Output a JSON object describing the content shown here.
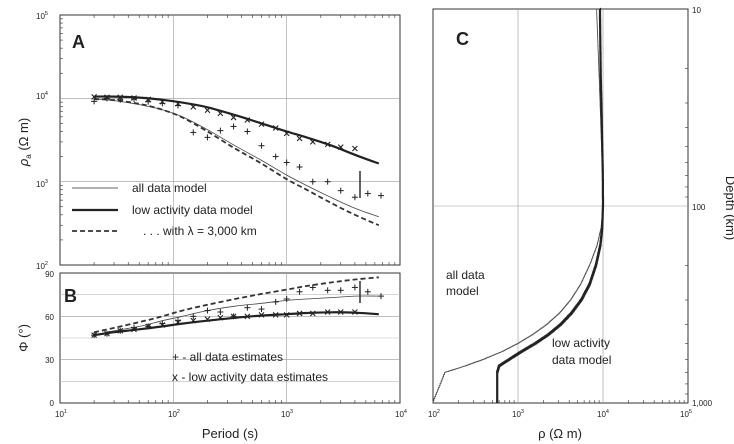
{
  "chart_data": [
    {
      "panel": "A",
      "type": "line",
      "ylabel": "ρa (Ω m)",
      "xscale": "log",
      "yscale": "log",
      "xlim": [
        10,
        10000
      ],
      "ylim": [
        100,
        100000
      ],
      "xticks": [
        "10^1",
        "10^2",
        "10^3",
        "10^4"
      ],
      "yticks": [
        "10^2",
        "10^3",
        "10^4",
        "10^5"
      ],
      "legend_placement": "bottom-left",
      "series": [
        {
          "name": "all data model",
          "style": "thin",
          "x": [
            20,
            30,
            50,
            80,
            120,
            200,
            350,
            600,
            1000,
            1500,
            2500,
            4000,
            6500
          ],
          "y": [
            9800,
            9400,
            8400,
            7300,
            6000,
            4200,
            2700,
            1800,
            1200,
            900,
            640,
            480,
            380
          ]
        },
        {
          "name": "low activity data model",
          "style": "thick",
          "x": [
            20,
            30,
            50,
            80,
            120,
            200,
            350,
            600,
            1000,
            1500,
            2500,
            4000,
            6500
          ],
          "y": [
            10500,
            10500,
            10200,
            9600,
            8900,
            7800,
            6300,
            5000,
            4000,
            3400,
            2700,
            2100,
            1650
          ]
        },
        {
          "name": ". . . with λ = 3,000 km",
          "style": "dashed",
          "x": [
            20,
            30,
            50,
            80,
            120,
            200,
            350,
            600,
            1000,
            1500,
            2500,
            4000,
            6500
          ],
          "y": [
            9800,
            9500,
            8600,
            7300,
            5900,
            4000,
            2500,
            1650,
            1070,
            800,
            550,
            400,
            300
          ]
        },
        {
          "name": "all data estimates",
          "marker": "plus",
          "x": [
            20,
            26,
            34,
            45,
            60,
            80,
            110,
            150,
            200,
            260,
            340,
            450,
            600,
            800,
            1000,
            1300,
            1700,
            2300,
            3000,
            4000,
            5200,
            6800
          ],
          "y": [
            9200,
            10000,
            9600,
            9800,
            9100,
            8700,
            8200,
            3900,
            3400,
            4100,
            4600,
            4000,
            2700,
            2000,
            1700,
            1500,
            1000,
            1000,
            780,
            650,
            720,
            680
          ]
        },
        {
          "name": "low activity data estimates",
          "marker": "x",
          "x": [
            20,
            26,
            34,
            45,
            60,
            80,
            110,
            150,
            200,
            260,
            340,
            450,
            600,
            800,
            1000,
            1300,
            1700,
            2300,
            3000,
            4000
          ],
          "y": [
            10400,
            10300,
            10300,
            10100,
            9700,
            9100,
            8600,
            7900,
            7200,
            6600,
            5900,
            5500,
            4900,
            4400,
            3800,
            3300,
            3000,
            2800,
            2600,
            2500
          ]
        }
      ],
      "annotations": [
        "A"
      ]
    },
    {
      "panel": "B",
      "type": "line",
      "xlabel": "Period (s)",
      "ylabel": "Φ (°)",
      "xscale": "log",
      "xlim": [
        10,
        10000
      ],
      "ylim": [
        0,
        90
      ],
      "xticks": [
        "10^1",
        "10^2",
        "10^3",
        "10^4"
      ],
      "yticks": [
        "0",
        "30",
        "60",
        "90"
      ],
      "series": [
        {
          "name": "all data model",
          "style": "thin",
          "x": [
            20,
            30,
            50,
            80,
            120,
            200,
            350,
            600,
            1000,
            1500,
            2500,
            4000,
            6500
          ],
          "y": [
            47,
            50,
            53,
            57,
            60,
            64,
            67,
            69,
            71,
            72,
            73,
            74,
            74
          ]
        },
        {
          "name": "low activity data model",
          "style": "thick",
          "x": [
            20,
            30,
            50,
            80,
            120,
            200,
            350,
            600,
            1000,
            1500,
            2500,
            4000,
            6500
          ],
          "y": [
            47,
            49,
            51,
            53,
            55,
            57,
            59,
            60.5,
            61.5,
            62.3,
            62.8,
            62.5,
            61.5
          ]
        },
        {
          "name": ". . . with λ = 3,000 km",
          "style": "dashed",
          "x": [
            20,
            30,
            50,
            80,
            120,
            200,
            350,
            600,
            1000,
            1500,
            2500,
            4000,
            6500
          ],
          "y": [
            49,
            52,
            56,
            60,
            64,
            68,
            72,
            75.5,
            78.5,
            81,
            83.5,
            85.5,
            87
          ]
        },
        {
          "name": "all data estimates",
          "marker": "plus",
          "x": [
            20,
            26,
            34,
            45,
            60,
            80,
            110,
            150,
            200,
            260,
            340,
            450,
            600,
            800,
            1000,
            1300,
            1700,
            2300,
            3000,
            4000,
            5200,
            6800
          ],
          "y": [
            47,
            48,
            50,
            52,
            53,
            55,
            57,
            60,
            64,
            63,
            60,
            66,
            65,
            70,
            72,
            77,
            80,
            78,
            78,
            80,
            77,
            74
          ]
        },
        {
          "name": "low activity data estimates",
          "marker": "x",
          "x": [
            20,
            26,
            34,
            45,
            60,
            80,
            110,
            150,
            200,
            260,
            340,
            450,
            600,
            800,
            1000,
            1300,
            1700,
            2300,
            3000,
            4000
          ],
          "y": [
            47,
            48,
            50,
            51,
            53,
            54,
            56,
            57,
            58,
            59,
            60,
            60,
            61,
            61,
            61,
            62,
            62,
            63,
            63,
            63
          ]
        }
      ],
      "legend_entries": [
        "+ - all data estimates",
        "x - low activity data estimates"
      ],
      "annotations": [
        "B"
      ]
    },
    {
      "panel": "C",
      "type": "line",
      "xlabel": "ρ (Ω m)",
      "ylabel": "Depth (km)",
      "xscale": "log",
      "yscale": "log",
      "y_inverted": true,
      "xlim": [
        100,
        100000
      ],
      "ylim": [
        10,
        1000
      ],
      "xticks": [
        "10^2",
        "10^3",
        "10^4",
        "10^5"
      ],
      "yticks": [
        "10",
        "100",
        "1,000"
      ],
      "series": [
        {
          "name": "all data model",
          "style": "thin",
          "rho": [
            8400,
            8700,
            9000,
            9300,
            9600,
            9850,
            10000,
            9500,
            8500,
            7000,
            5500,
            4200,
            3100,
            2200,
            1500,
            1000,
            650,
            400,
            240,
            140,
            100
          ],
          "depth": [
            10,
            15,
            22,
            33,
            50,
            70,
            100,
            130,
            160,
            200,
            250,
            300,
            350,
            400,
            450,
            500,
            550,
            600,
            650,
            700,
            1000
          ]
        },
        {
          "name": "low activity data model",
          "style": "thick",
          "rho": [
            9200,
            9300,
            9400,
            9600,
            9800,
            9950,
            10000,
            9800,
            9300,
            8300,
            7000,
            5600,
            4300,
            3200,
            2300,
            1600,
            1100,
            800,
            600,
            570,
            570
          ],
          "depth": [
            10,
            15,
            22,
            33,
            50,
            70,
            100,
            130,
            160,
            200,
            250,
            300,
            350,
            400,
            450,
            500,
            550,
            600,
            650,
            700,
            1000
          ]
        }
      ],
      "annotations": [
        "C",
        "all data",
        "model",
        "low activity",
        "data model"
      ]
    }
  ],
  "text": {
    "panel_a": "A",
    "panel_b": "B",
    "panel_c": "C",
    "a_ylabel_main": "ρ",
    "a_ylabel_sub": "a",
    "a_ylabel_unit": " (Ω m)",
    "b_ylabel": "Φ (°)",
    "period_label": "Period (s)",
    "c_xlabel": "ρ (Ω m)",
    "c_ylabel": "Depth (km)",
    "legend_thin": "all data model",
    "legend_thick": "low activity data model",
    "legend_dashed": ". . . with λ = 3,000 km",
    "legend_plus": "+ - all data estimates",
    "legend_x": "x - low activity data estimates",
    "c_label_all_1": "all data",
    "c_label_all_2": "model",
    "c_label_low_1": "low activity",
    "c_label_low_2": "data model",
    "tick_base": "10",
    "exp_1": "1",
    "exp_2": "2",
    "exp_3": "3",
    "exp_4": "4",
    "exp_5": "5",
    "tick_0": "0",
    "tick_30": "30",
    "tick_60": "60",
    "tick_90": "90",
    "depth_10": "10",
    "depth_100": "100",
    "depth_1000": "1,000"
  }
}
